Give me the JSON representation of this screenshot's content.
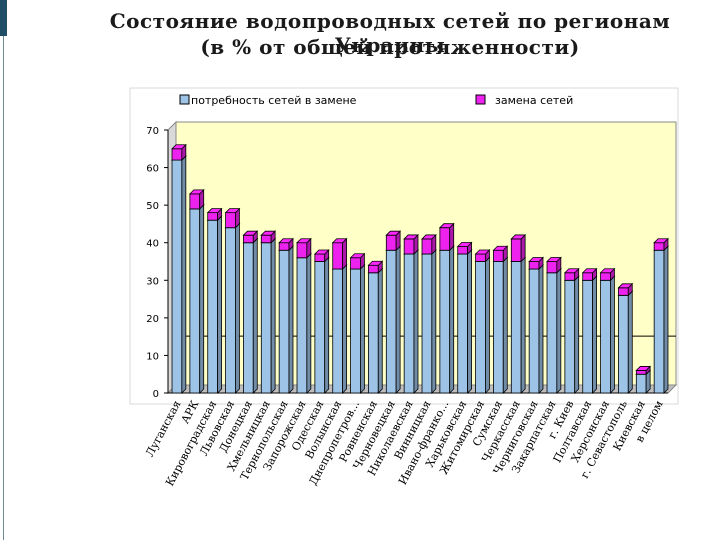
{
  "title_line1": "Состояние водопроводных сетей по регионам Украины",
  "title_line2": "(в % от общей протяженности)",
  "chart_data": {
    "type": "bar",
    "stacked": true,
    "three_d": true,
    "categories": [
      "Луганская",
      "АРК",
      "Кировоградская",
      "Львовская",
      "Донецкая",
      "Хмельницкая",
      "Тернопольская",
      "Запорожская",
      "Одесская",
      "Волынская",
      "Днепропетров...",
      "Ровненская",
      "Черновецкая",
      "Николаевская",
      "Винницкая",
      "Ивано-франко...",
      "Харьковская",
      "Житомирская",
      "Сумская",
      "Черкасская",
      "Черниговская",
      "Закарпатская",
      "г. Киев",
      "Полтавская",
      "Херсонская",
      "г. Севастополь",
      "Киевская",
      "в целом"
    ],
    "series": [
      {
        "name": "потребность сетей в замене",
        "color": "#9dc3e6",
        "values": [
          62,
          49,
          46,
          44,
          40,
          40,
          38,
          36,
          35,
          33,
          33,
          32,
          38,
          37,
          37,
          38,
          37,
          35,
          35,
          35,
          33,
          32,
          30,
          30,
          30,
          26,
          5,
          38
        ]
      },
      {
        "name": "замена сетей",
        "color": "#ee22ee",
        "values": [
          3,
          4,
          2,
          4,
          2,
          2,
          2,
          4,
          2,
          7,
          3,
          2,
          4,
          4,
          4,
          6,
          2,
          2,
          3,
          6,
          2,
          3,
          2,
          2,
          2,
          2,
          1,
          2
        ]
      }
    ],
    "yticks": [
      0,
      10,
      20,
      30,
      40,
      50,
      60,
      70
    ],
    "ylim": [
      0,
      70
    ],
    "reference_line": 13,
    "legend_position": "top",
    "grid": false,
    "colors": {
      "plot_background": "#ffffc8",
      "bar_outline": "#000000",
      "reference_line": "#000000"
    }
  }
}
